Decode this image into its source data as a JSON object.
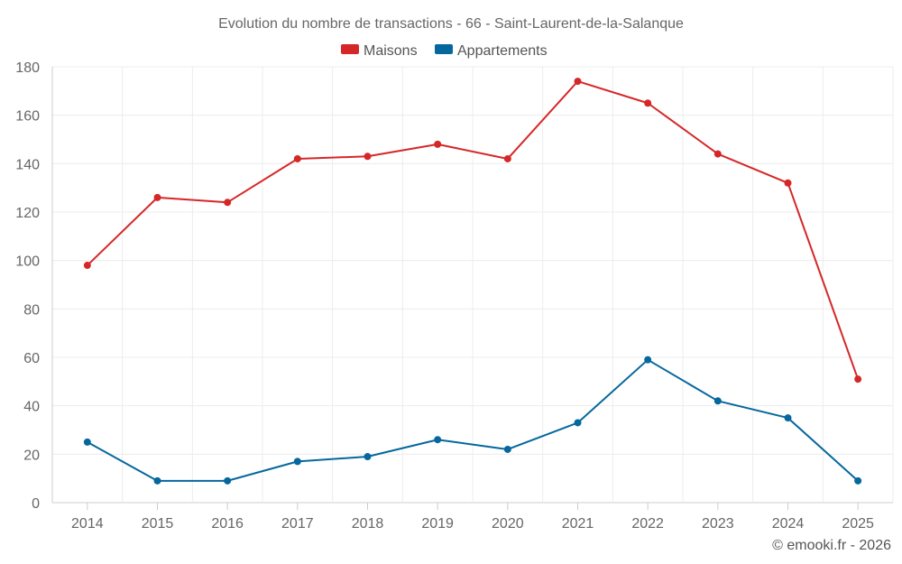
{
  "chart_data": {
    "type": "line",
    "title": "Evolution du nombre de transactions - 66 - Saint-Laurent-de-la-Salanque",
    "categories": [
      "2014",
      "2015",
      "2016",
      "2017",
      "2018",
      "2019",
      "2020",
      "2021",
      "2022",
      "2023",
      "2024",
      "2025"
    ],
    "series": [
      {
        "name": "Maisons",
        "color": "#d62728",
        "values": [
          98,
          126,
          124,
          142,
          143,
          148,
          142,
          174,
          165,
          144,
          132,
          51
        ]
      },
      {
        "name": "Appartements",
        "color": "#05679d",
        "values": [
          25,
          9,
          9,
          17,
          19,
          26,
          22,
          33,
          59,
          42,
          35,
          9
        ]
      }
    ],
    "ylim": [
      0,
      180
    ],
    "yticks": [
      0,
      20,
      40,
      60,
      80,
      100,
      120,
      140,
      160,
      180
    ],
    "xlabel": "",
    "ylabel": "",
    "grid": true,
    "legend": "top-center"
  },
  "credit": "© emooki.fr - 2026"
}
